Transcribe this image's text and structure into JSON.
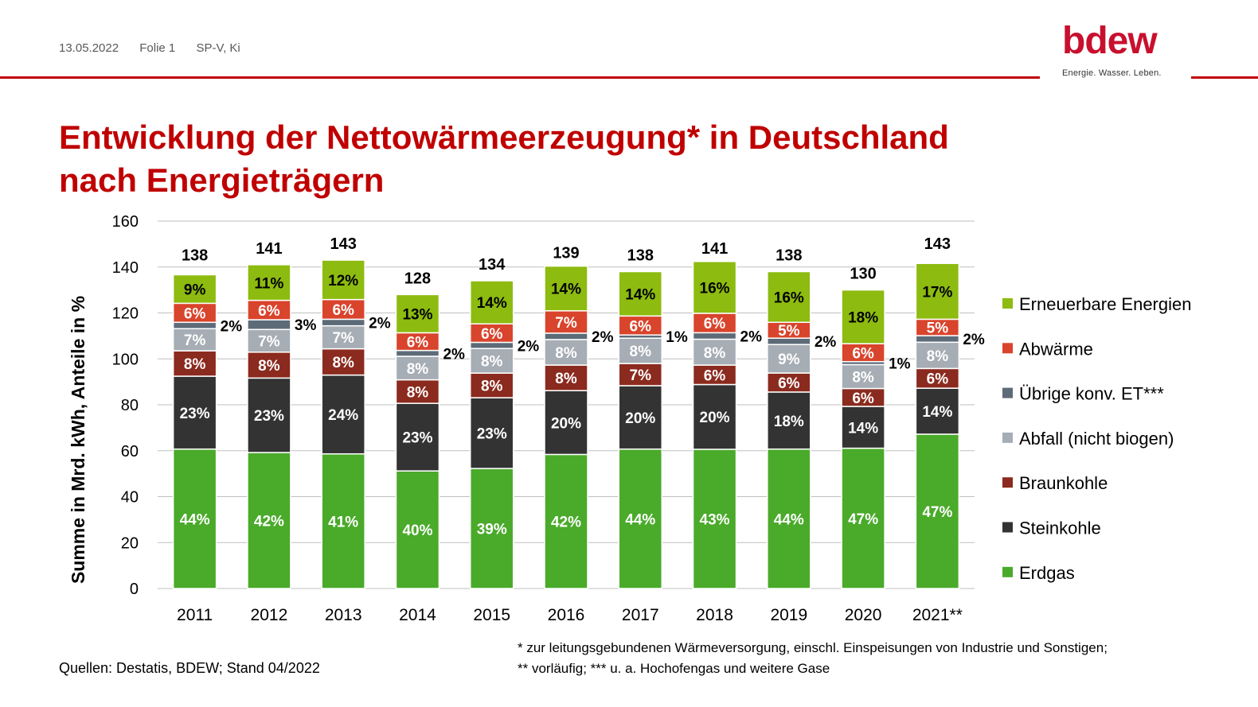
{
  "header": {
    "date": "13.05.2022",
    "slide": "Folie 1",
    "author": "SP-V, Ki"
  },
  "logo": {
    "word": "bdew",
    "tagline": "Energie. Wasser. Leben.",
    "color": "#c8102e"
  },
  "title": {
    "line1": "Entwicklung der Nettowärmeerzeugung* in Deutschland",
    "line2": "nach Energieträgern"
  },
  "chart_data": {
    "type": "bar",
    "stacked": true,
    "categories": [
      "2011",
      "2012",
      "2013",
      "2014",
      "2015",
      "2016",
      "2017",
      "2018",
      "2019",
      "2020",
      "2021**"
    ],
    "totals": [
      138,
      141,
      143,
      128,
      134,
      139,
      138,
      141,
      138,
      130,
      143
    ],
    "ylabel": "Summe in Mrd. kWh, Anteile in %",
    "ylim": [
      0,
      160
    ],
    "yticks": [
      0,
      20,
      40,
      60,
      80,
      100,
      120,
      140,
      160
    ],
    "grid": true,
    "legend_position": "right",
    "series": [
      {
        "name": "Erdgas",
        "color": "#4aaa2a",
        "label_color": "#ffffff",
        "percents": [
          44,
          42,
          41,
          40,
          39,
          42,
          44,
          43,
          44,
          47,
          47
        ],
        "labels": [
          "44%",
          "42%",
          "41%",
          "40%",
          "39%",
          "42%",
          "44%",
          "43%",
          "44%",
          "47%",
          "47%"
        ]
      },
      {
        "name": "Steinkohle",
        "color": "#333333",
        "label_color": "#ffffff",
        "percents": [
          23,
          23,
          24,
          23,
          23,
          20,
          20,
          20,
          18,
          14,
          14
        ],
        "labels": [
          "23%",
          "23%",
          "24%",
          "23%",
          "23%",
          "20%",
          "20%",
          "20%",
          "18%",
          "14%",
          "14%"
        ]
      },
      {
        "name": "Braunkohle",
        "color": "#8b2a1e",
        "label_color": "#ffffff",
        "percents": [
          8,
          8,
          8,
          8,
          8,
          8,
          7,
          6,
          6,
          6,
          6
        ],
        "labels": [
          "8%",
          "8%",
          "8%",
          "8%",
          "8%",
          "8%",
          "7%",
          "6%",
          "6%",
          "6%",
          "6%"
        ]
      },
      {
        "name": "Abfall (nicht biogen)",
        "color": "#a6adb4",
        "label_color": "#ffffff",
        "percents": [
          7,
          7,
          7,
          8,
          8,
          8,
          8,
          8,
          9,
          8,
          8
        ],
        "labels": [
          "7%",
          "7%",
          "7%",
          "8%",
          "8%",
          "8%",
          "8%",
          "8%",
          "9%",
          "8%",
          "8%"
        ]
      },
      {
        "name": "Übrige konv. ET***",
        "color": "#5d6b78",
        "label_color": "#000000",
        "percents": [
          2,
          3,
          2,
          2,
          2,
          2,
          1,
          2,
          2,
          1,
          2
        ],
        "labels": [
          "2%",
          "3%",
          "2%",
          "2%",
          "2%",
          "2%",
          "1%",
          "2%",
          "2%",
          "1%",
          "2%"
        ]
      },
      {
        "name": "Abwärme",
        "color": "#d9442c",
        "label_color": "#ffffff",
        "percents": [
          6,
          6,
          6,
          6,
          6,
          7,
          6,
          6,
          5,
          6,
          5
        ],
        "labels": [
          "6%",
          "6%",
          "6%",
          "6%",
          "6%",
          "7%",
          "6%",
          "6%",
          "5%",
          "6%",
          "5%"
        ]
      },
      {
        "name": "Erneuerbare Energien",
        "color": "#8dbb10",
        "label_color": "#000000",
        "percents": [
          9,
          11,
          12,
          13,
          14,
          14,
          14,
          16,
          16,
          18,
          17
        ],
        "labels": [
          "9%",
          "11%",
          "12%",
          "13%",
          "14%",
          "14%",
          "14%",
          "16%",
          "16%",
          "18%",
          "17%"
        ]
      }
    ]
  },
  "footer": {
    "source": "Quellen: Destatis, BDEW; Stand 04/2022",
    "note1": "* zur leitungsgebundenen Wärmeversorgung, einschl. Einspeisungen von Industrie und Sonstigen;",
    "note2": "** vorläufig; *** u. a. Hochofengas und weitere Gase"
  }
}
